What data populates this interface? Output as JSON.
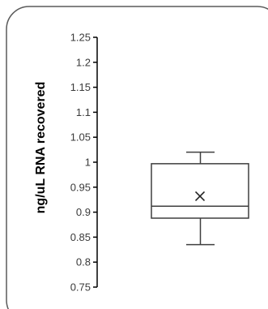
{
  "chart_data": {
    "type": "box",
    "title": "",
    "xlabel": "",
    "ylabel": "ng/uL RNA recovered",
    "ylim": [
      0.75,
      1.25
    ],
    "y_ticks": [
      "0.75",
      "0.8",
      "0.85",
      "0.9",
      "0.95",
      "1",
      "1.05",
      "1.1",
      "1.15",
      "1.2",
      "1.25"
    ],
    "grid": false,
    "legend": "none",
    "series": [
      {
        "whisker_low": 0.835,
        "q1": 0.888,
        "median": 0.912,
        "mean": 0.932,
        "q3": 0.997,
        "whisker_high": 1.02
      }
    ]
  },
  "colors": {
    "frame": "#5a5a5a",
    "axis": "#000000",
    "box": "#3f3f3f",
    "tick_text": "#3a3a3a"
  }
}
